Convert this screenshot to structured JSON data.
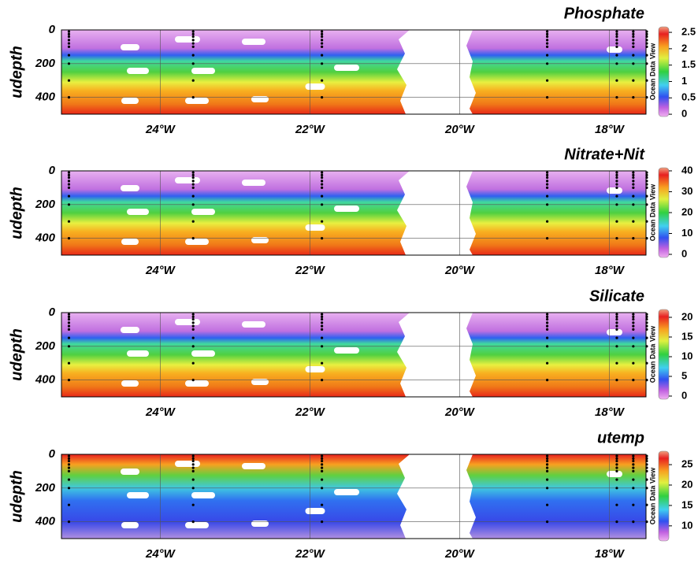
{
  "chart_data": [
    {
      "type": "section",
      "title": "Phosphate",
      "y_label": "udepth",
      "colorbar_label": "Ocean Data View",
      "xlim": [
        -25.32,
        -17.51
      ],
      "ylim": [
        0,
        500
      ],
      "xticks": [
        {
          "value": -24,
          "label": "24°W"
        },
        {
          "value": -22,
          "label": "22°W"
        },
        {
          "value": -20,
          "label": "20°W"
        },
        {
          "value": -18,
          "label": "18°W"
        }
      ],
      "yticks": [
        0,
        200,
        400
      ],
      "grid": true,
      "clim": [
        -0.07,
        2.67
      ],
      "cticks": [
        0,
        0.5,
        1,
        1.5,
        2,
        2.5
      ],
      "colormap": "normal"
    },
    {
      "type": "section",
      "title": "Nitrate+Nit",
      "y_label": "udepth",
      "colorbar_label": "Ocean Data View",
      "xlim": [
        -25.32,
        -17.51
      ],
      "ylim": [
        0,
        500
      ],
      "xticks": [
        {
          "value": -24,
          "label": "24°W"
        },
        {
          "value": -22,
          "label": "22°W"
        },
        {
          "value": -20,
          "label": "20°W"
        },
        {
          "value": -18,
          "label": "18°W"
        }
      ],
      "yticks": [
        0,
        200,
        400
      ],
      "grid": true,
      "clim": [
        -1.5,
        41.5
      ],
      "cticks": [
        0,
        10,
        20,
        30,
        40
      ],
      "colormap": "normal"
    },
    {
      "type": "section",
      "title": "Silicate",
      "y_label": "udepth",
      "colorbar_label": "Ocean Data View",
      "xlim": [
        -25.32,
        -17.51
      ],
      "ylim": [
        0,
        500
      ],
      "xticks": [
        {
          "value": -24,
          "label": "24°W"
        },
        {
          "value": -22,
          "label": "22°W"
        },
        {
          "value": -20,
          "label": "20°W"
        },
        {
          "value": -18,
          "label": "18°W"
        }
      ],
      "yticks": [
        0,
        200,
        400
      ],
      "grid": true,
      "clim": [
        -0.8,
        22
      ],
      "cticks": [
        0,
        5,
        10,
        15,
        20
      ],
      "colormap": "normal"
    },
    {
      "type": "section",
      "title": "utemp",
      "y_label": "udepth",
      "colorbar_label": "Ocean Data View",
      "xlim": [
        -25.32,
        -17.51
      ],
      "ylim": [
        0,
        500
      ],
      "xticks": [
        {
          "value": -24,
          "label": "24°W"
        },
        {
          "value": -22,
          "label": "22°W"
        },
        {
          "value": -20,
          "label": "20°W"
        },
        {
          "value": -18,
          "label": "18°W"
        }
      ],
      "yticks": [
        0,
        200,
        400
      ],
      "grid": true,
      "clim": [
        6.3,
        28.3
      ],
      "cticks": [
        10,
        15,
        20,
        25
      ],
      "colormap": "reversed"
    }
  ],
  "stations": {
    "x": [
      -25.22,
      -23.56,
      -21.84,
      -18.83,
      -17.9,
      -17.68,
      -17.5
    ],
    "depths": [
      10,
      25,
      40,
      60,
      80,
      100,
      150,
      200,
      300,
      400
    ]
  }
}
